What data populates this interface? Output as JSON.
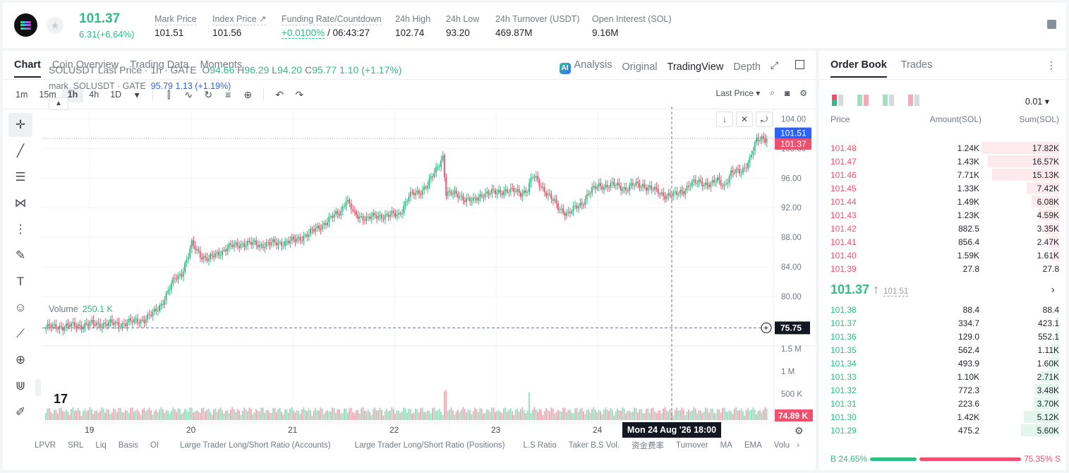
{
  "header": {
    "last_price": "101.37",
    "change": "6.31(+6.64%)",
    "stats": [
      {
        "label": "Mark Price",
        "value": "101.51"
      },
      {
        "label": "Index Price ↗",
        "value": "101.56"
      },
      {
        "label": "Funding Rate/Countdown",
        "value_green": "+0.0100%",
        "value": " / 06:43:27"
      },
      {
        "label": "24h High",
        "value": "102.74"
      },
      {
        "label": "24h Low",
        "value": "93.20"
      },
      {
        "label": "24h Turnover (USDT)",
        "value": "469.87M"
      },
      {
        "label": "Open Interest (SOL)",
        "value": "9.16M"
      }
    ]
  },
  "tabs": [
    "Chart",
    "Coin Overview",
    "Trading Data",
    "Moments"
  ],
  "views": {
    "ai_badge": "AI",
    "analysis": "Analysis",
    "original": "Original",
    "tradingview": "TradingView",
    "depth": "Depth"
  },
  "intervals": [
    "1m",
    "15m",
    "1h",
    "4h",
    "1D"
  ],
  "active_interval": "1h",
  "price_source": "Last Price",
  "legend": {
    "title": "SOLUSDT Last Price · 1h · GATE",
    "o_label": "O",
    "o": "94.66",
    "h_label": "H",
    "h": "96.29",
    "l_label": "L",
    "l": "94.20",
    "c_label": "C",
    "c": "95.77",
    "chg": "1.10 (+1.17%)",
    "mark": "mark_SOLUSDT · GATE",
    "mark_vals": "95.79  1.13 (+1.19%)"
  },
  "volume": {
    "label": "Volume",
    "value": "250.1 K"
  },
  "tv_logo": "17",
  "crosshair_time": "Mon 24 Aug '26   18:00",
  "chart_data": {
    "type": "candlestick",
    "title": "SOLUSDT Last Price · 1h · GATE",
    "y_ticks": [
      "104.00",
      "100.00",
      "96.00",
      "92.00",
      "88.00",
      "84.00",
      "80.00"
    ],
    "ylim": [
      73.5,
      105.2
    ],
    "x_ticks": [
      "19",
      "20",
      "21",
      "22",
      "23",
      "24"
    ],
    "price_tags": {
      "mark": "101.51",
      "last": "101.37",
      "crosshair": "75.75"
    },
    "volume_ticks": [
      "1.5 M",
      "1 M",
      "500 K"
    ],
    "volume_tag": "74.89 K",
    "close_anchors": [
      [
        0,
        75.8
      ],
      [
        15,
        76.0
      ],
      [
        30,
        76.3
      ],
      [
        45,
        76.3
      ],
      [
        58,
        76.9
      ],
      [
        63,
        77.6
      ],
      [
        68,
        79.0
      ],
      [
        72,
        80.6
      ],
      [
        76,
        82.4
      ],
      [
        80,
        83.2
      ],
      [
        84,
        85.5
      ],
      [
        86,
        87.0
      ],
      [
        92,
        85.5
      ],
      [
        96,
        85.0
      ],
      [
        106,
        86.5
      ],
      [
        116,
        87.2
      ],
      [
        126,
        87.0
      ],
      [
        136,
        87.2
      ],
      [
        146,
        87.5
      ],
      [
        156,
        88.6
      ],
      [
        166,
        90.2
      ],
      [
        174,
        91.6
      ],
      [
        177,
        93.2
      ],
      [
        182,
        91.0
      ],
      [
        190,
        90.6
      ],
      [
        200,
        91.0
      ],
      [
        208,
        91.0
      ],
      [
        214,
        93.6
      ],
      [
        220,
        94.0
      ],
      [
        226,
        95.5
      ],
      [
        230,
        97.0
      ],
      [
        234,
        99.0
      ],
      [
        236,
        94.0
      ],
      [
        244,
        93.6
      ],
      [
        252,
        92.8
      ],
      [
        258,
        94.0
      ],
      [
        266,
        94.0
      ],
      [
        270,
        94.4
      ],
      [
        276,
        94.2
      ],
      [
        280,
        94.0
      ],
      [
        284,
        94.5
      ],
      [
        287,
        96.2
      ],
      [
        290,
        95.6
      ],
      [
        296,
        93.8
      ],
      [
        302,
        92.0
      ],
      [
        308,
        91.2
      ],
      [
        316,
        92.6
      ],
      [
        320,
        94.0
      ],
      [
        326,
        95.0
      ],
      [
        336,
        95.0
      ],
      [
        342,
        94.6
      ],
      [
        346,
        95.0
      ],
      [
        352,
        95.1
      ],
      [
        358,
        94.4
      ],
      [
        364,
        93.8
      ],
      [
        370,
        93.6
      ],
      [
        376,
        94.4
      ],
      [
        380,
        95.2
      ],
      [
        386,
        95.5
      ],
      [
        392,
        95.1
      ],
      [
        396,
        95.7
      ],
      [
        400,
        95.1
      ],
      [
        404,
        96.6
      ],
      [
        410,
        97.0
      ],
      [
        415,
        98.5
      ],
      [
        419,
        101.0
      ],
      [
        422,
        101.5
      ],
      [
        425,
        101.37
      ]
    ]
  },
  "order_book": {
    "tabs": [
      "Order Book",
      "Trades"
    ],
    "precision": "0.01",
    "headers": [
      "Price",
      "Amount(SOL)",
      "Sum(SOL)"
    ],
    "asks": [
      {
        "price": "101.48",
        "amount": "1.24K",
        "sum": "17.82K",
        "amount_frac": 0.0,
        "sum_frac": 1.0
      },
      {
        "price": "101.47",
        "amount": "1.43K",
        "sum": "16.57K",
        "amount_frac": 0.0,
        "sum_frac": 0.92
      },
      {
        "price": "101.46",
        "amount": "7.71K",
        "sum": "15.13K",
        "amount_frac": 0.0,
        "sum_frac": 0.86
      },
      {
        "price": "101.45",
        "amount": "1.33K",
        "sum": "7.42K",
        "amount_frac": 0.0,
        "sum_frac": 0.42
      },
      {
        "price": "101.44",
        "amount": "1.49K",
        "sum": "6.08K",
        "amount_frac": 0.0,
        "sum_frac": 0.35
      },
      {
        "price": "101.43",
        "amount": "1.23K",
        "sum": "4.59K",
        "amount_frac": 0.0,
        "sum_frac": 0.26
      },
      {
        "price": "101.42",
        "amount": "882.5",
        "sum": "3.35K",
        "amount_frac": 0.0,
        "sum_frac": 0.19
      },
      {
        "price": "101.41",
        "amount": "856.4",
        "sum": "2.47K",
        "amount_frac": 0.0,
        "sum_frac": 0.14
      },
      {
        "price": "101.40",
        "amount": "1.59K",
        "sum": "1.61K",
        "amount_frac": 0.0,
        "sum_frac": 0.09
      },
      {
        "price": "101.39",
        "amount": "27.8",
        "sum": "27.8",
        "amount_frac": 0.0,
        "sum_frac": 0.0
      }
    ],
    "mid": {
      "price": "101.37",
      "arrow": "↑",
      "mark": "101.51",
      "chevron": "›"
    },
    "bids": [
      {
        "price": "101.38",
        "amount": "88.4",
        "sum": "88.4",
        "sum_frac": 0.0
      },
      {
        "price": "101.37",
        "amount": "334.7",
        "sum": "423.1",
        "sum_frac": 0.04
      },
      {
        "price": "101.36",
        "amount": "129.0",
        "sum": "552.1",
        "sum_frac": 0.05
      },
      {
        "price": "101.35",
        "amount": "562.4",
        "sum": "1.11K",
        "sum_frac": 0.1
      },
      {
        "price": "101.34",
        "amount": "493.9",
        "sum": "1.60K",
        "sum_frac": 0.14
      },
      {
        "price": "101.33",
        "amount": "1.10K",
        "sum": "2.71K",
        "sum_frac": 0.24
      },
      {
        "price": "101.32",
        "amount": "772.3",
        "sum": "3.48K",
        "sum_frac": 0.31
      },
      {
        "price": "101.31",
        "amount": "223.6",
        "sum": "3.70K",
        "sum_frac": 0.33
      },
      {
        "price": "101.30",
        "amount": "1.42K",
        "sum": "5.12K",
        "sum_frac": 0.45
      },
      {
        "price": "101.29",
        "amount": "475.2",
        "sum": "5.60K",
        "sum_frac": 0.49
      }
    ],
    "buy_ratio": "B 24.65%",
    "sell_ratio": "75.35% S"
  },
  "indicators": [
    "LPVR",
    "SRL",
    "Liq",
    "Basis",
    "OI",
    "Large Trader Long/Short Ratio (Accounts)",
    "Large Trader Long/Short Ratio (Positions)",
    "L.S Ratio",
    "Taker B.S Vol.",
    "资金费率",
    "Turnover",
    "MA",
    "EMA",
    "Volu",
    "›"
  ],
  "colors": {
    "up": "#2ebd85",
    "down": "#f0506e",
    "mark_tag": "#2962ff"
  }
}
